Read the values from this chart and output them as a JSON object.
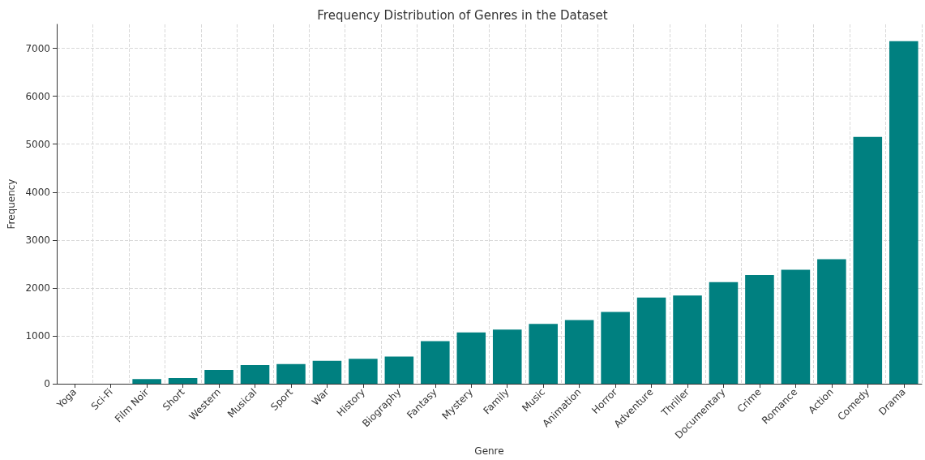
{
  "chart_data": {
    "type": "bar",
    "title": "Frequency Distribution of Genres in the Dataset",
    "xlabel": "Genre",
    "ylabel": "Frequency",
    "categories": [
      "Yoga",
      "Sci-Fi",
      "Film Noir",
      "Short",
      "Western",
      "Musical",
      "Sport",
      "War",
      "History",
      "Biography",
      "Fantasy",
      "Mystery",
      "Family",
      "Music",
      "Animation",
      "Horror",
      "Adventure",
      "Thriller",
      "Documentary",
      "Crime",
      "Romance",
      "Action",
      "Comedy",
      "Drama"
    ],
    "values": [
      0,
      0,
      100,
      120,
      290,
      390,
      410,
      480,
      520,
      570,
      890,
      1070,
      1130,
      1250,
      1330,
      1500,
      1800,
      1840,
      2120,
      2270,
      2380,
      2600,
      5150,
      7150
    ],
    "color": "#008080",
    "ylim": [
      0,
      7500
    ],
    "yticks": [
      0,
      1000,
      2000,
      3000,
      4000,
      5000,
      6000,
      7000
    ],
    "grid": true
  }
}
